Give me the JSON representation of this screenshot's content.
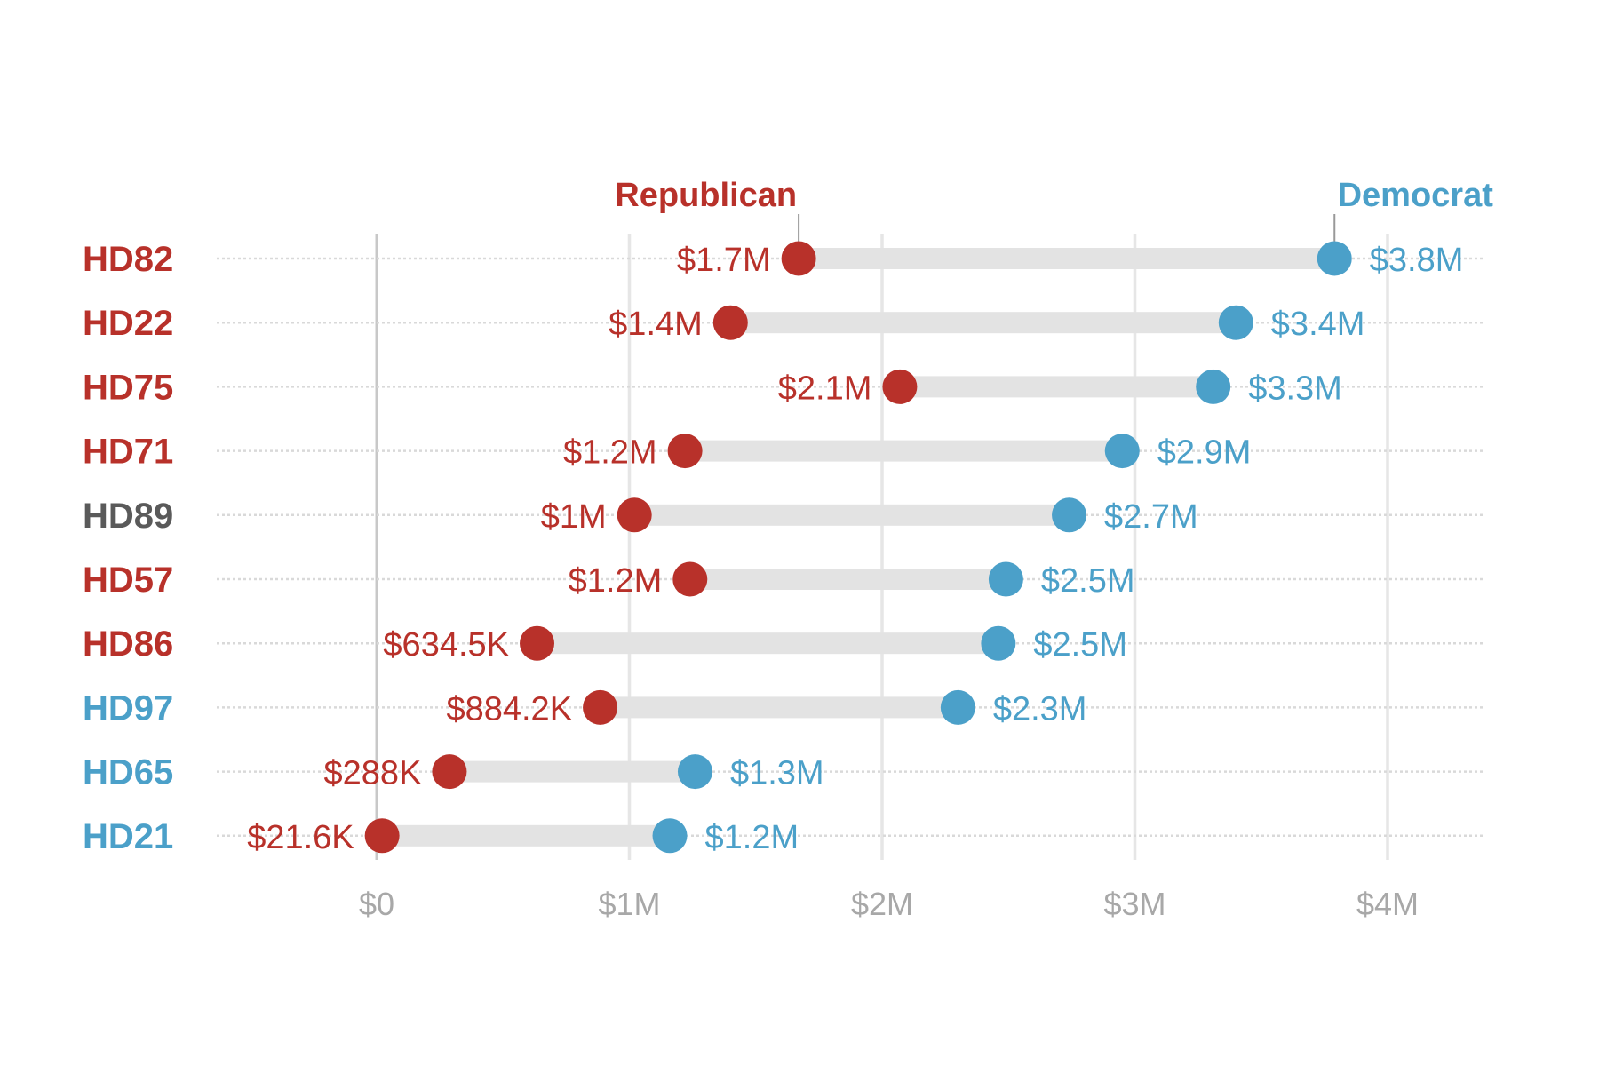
{
  "chart_data": {
    "type": "dumbbell",
    "title": "",
    "xlabel": "",
    "ylabel": "",
    "x_range": [
      0,
      4000000
    ],
    "x_ticks": [
      0,
      1000000,
      2000000,
      3000000,
      4000000
    ],
    "x_tick_labels": [
      "$0",
      "$1M",
      "$2M",
      "$3M",
      "$4M"
    ],
    "grid": "vertical",
    "legend": [
      {
        "name": "Republican",
        "color": "#b8312a",
        "position": "top, above first Republican point"
      },
      {
        "name": "Democrat",
        "color": "#4ba0c9",
        "position": "top, above first Democrat point"
      }
    ],
    "categories": [
      "HD82",
      "HD22",
      "HD75",
      "HD71",
      "HD89",
      "HD57",
      "HD86",
      "HD97",
      "HD65",
      "HD21"
    ],
    "category_colors": [
      "#b8312a",
      "#b8312a",
      "#b8312a",
      "#b8312a",
      "#5a5a5a",
      "#b8312a",
      "#b8312a",
      "#4ba0c9",
      "#4ba0c9",
      "#4ba0c9"
    ],
    "series": [
      {
        "name": "Republican",
        "color": "#b8312a",
        "values": [
          1670000,
          1400000,
          2070000,
          1220000,
          1020000,
          1240000,
          634500,
          884200,
          288000,
          21600
        ],
        "labels": [
          "$1.7M",
          "$1.4M",
          "$2.1M",
          "$1.2M",
          "$1M",
          "$1.2M",
          "$634.5K",
          "$884.2K",
          "$288K",
          "$21.6K"
        ]
      },
      {
        "name": "Democrat",
        "color": "#4ba0c9",
        "values": [
          3790000,
          3400000,
          3310000,
          2950000,
          2740000,
          2490000,
          2460000,
          2300000,
          1260000,
          1160000
        ],
        "labels": [
          "$3.8M",
          "$3.4M",
          "$3.3M",
          "$2.9M",
          "$2.7M",
          "$2.5M",
          "$2.5M",
          "$2.3M",
          "$1.3M",
          "$1.2M"
        ]
      }
    ]
  },
  "colors": {
    "republican": "#b8312a",
    "democrat": "#4ba0c9",
    "neutral": "#5a5a5a",
    "bar": "#e3e3e3",
    "grid": "#e6e6e6",
    "axis": "#c8c8c8",
    "tick": "#a8a8a8"
  }
}
